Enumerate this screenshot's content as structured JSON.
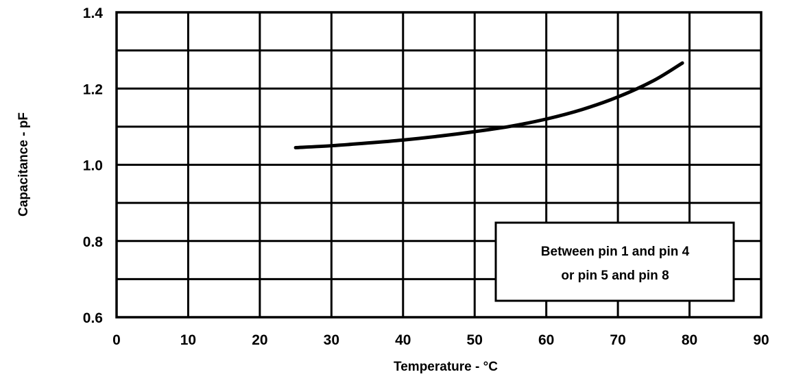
{
  "chart_data": {
    "type": "line",
    "title": "",
    "xlabel": "Temperature - °C",
    "ylabel": "Capacitance - pF",
    "xlim": [
      0,
      90
    ],
    "ylim": [
      0.6,
      1.4
    ],
    "x_ticks": [
      0,
      10,
      20,
      30,
      40,
      50,
      60,
      70,
      80,
      90
    ],
    "x_tick_labels": [
      "0",
      "10",
      "20",
      "30",
      "40",
      "50",
      "60",
      "70",
      "80",
      "90"
    ],
    "y_ticks": [
      0.6,
      0.8,
      1.0,
      1.2,
      1.4
    ],
    "y_tick_labels": [
      "0.6",
      "0.8",
      "1.0",
      "1.2",
      "1.4"
    ],
    "grid": true,
    "grid_x_step": 10,
    "grid_y_step": 0.1,
    "series": [
      {
        "x": [
          25,
          30,
          35,
          40,
          45,
          50,
          55,
          60,
          65,
          70,
          75,
          79
        ],
        "y": [
          1.045,
          1.05,
          1.057,
          1.065,
          1.075,
          1.087,
          1.101,
          1.12,
          1.145,
          1.178,
          1.221,
          1.267
        ],
        "color": "#000000"
      }
    ],
    "annotation": {
      "lines": [
        "Between pin 1 and pin 4",
        "or pin 5 and pin 8"
      ],
      "placement": "bottom-right"
    }
  }
}
